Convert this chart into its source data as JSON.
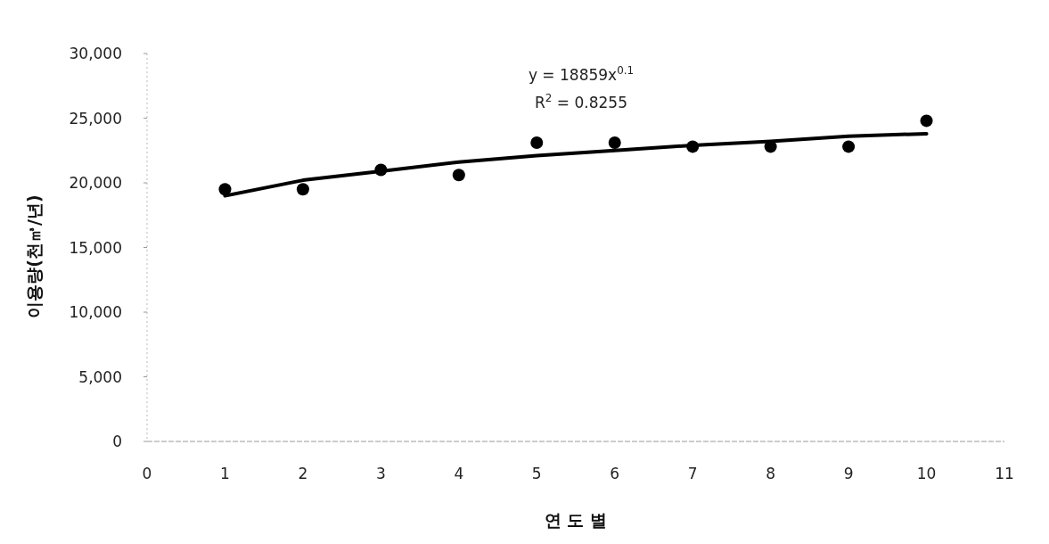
{
  "chart_data": {
    "type": "scatter",
    "xlabel": "연 도 별",
    "ylabel": "이용량(천㎥/년)",
    "annotations": [
      "y = 18859x$^{0.1}$",
      "R$^{2}$ = 0.8255"
    ],
    "x": [
      1,
      2,
      3,
      4,
      5,
      6,
      7,
      8,
      9,
      10
    ],
    "series": [
      {
        "type": "scatter",
        "color": "#000000",
        "marker": "circle",
        "values": [
          19500,
          19500,
          21000,
          20600,
          23100,
          23100,
          22800,
          22800,
          22800,
          24800
        ]
      },
      {
        "type": "line",
        "color": "#000000",
        "line_style": "solid",
        "x": [
          1,
          2,
          3,
          4,
          5,
          6,
          7,
          8,
          9,
          10
        ],
        "values": [
          19000,
          20200,
          20900,
          21600,
          22100,
          22500,
          22900,
          23200,
          23600,
          23800
        ]
      }
    ],
    "xlim": [
      0,
      11
    ],
    "xticks": [
      0,
      1,
      2,
      3,
      4,
      5,
      6,
      7,
      8,
      9,
      10,
      11
    ],
    "ylim": [
      0,
      30000
    ],
    "yticks": [
      0,
      {
        "value": 5000,
        "label": "5,000"
      },
      {
        "value": 10000,
        "label": "10,000"
      },
      {
        "value": 15000,
        "label": "15,000"
      },
      {
        "value": 20000,
        "label": "20,000"
      },
      {
        "value": 25000,
        "label": "25,000"
      },
      {
        "value": 30000,
        "label": "30,000"
      }
    ]
  }
}
